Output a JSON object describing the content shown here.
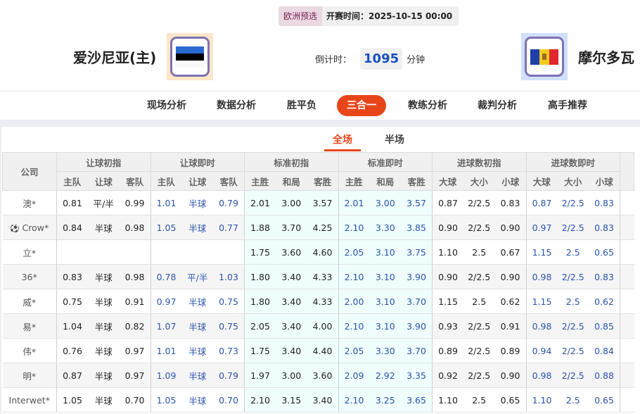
{
  "header": {
    "league": "欧洲预选",
    "kickoff": "开赛时间：2025-10-15 00:00",
    "home_team": "爱沙尼亚(主)",
    "away_team": "摩尔多瓦",
    "countdown_label": "倒计时：",
    "countdown_value": "1095",
    "countdown_unit": "分钟"
  },
  "nav": {
    "items": [
      "现场分析",
      "数据分析",
      "胜平负",
      "三合一",
      "教练分析",
      "裁判分析",
      "高手推荐"
    ],
    "active": "三合一"
  },
  "subtabs": {
    "full": "全场",
    "half": "半场",
    "active": "全场"
  },
  "table": {
    "company_header": "公司",
    "groups": [
      "让球初指",
      "让球即时",
      "标准初指",
      "标准即时",
      "进球数初指",
      "进球数即时"
    ],
    "subheaders": [
      [
        "主队",
        "让球",
        "客队"
      ],
      [
        "主队",
        "让球",
        "客队"
      ],
      [
        "主胜",
        "和局",
        "客胜"
      ],
      [
        "主胜",
        "和局",
        "客胜"
      ],
      [
        "大球",
        "大小",
        "小球"
      ],
      [
        "大球",
        "大小",
        "小球"
      ]
    ],
    "rows": [
      {
        "company": "澳*",
        "values": [
          "0.81",
          "平/半",
          "0.99",
          "1.01",
          "半球",
          "0.79",
          "2.01",
          "3.00",
          "3.57",
          "2.01",
          "3.00",
          "3.57",
          "0.87",
          "2/2.5",
          "0.83",
          "0.87",
          "2/2.5",
          "0.83"
        ]
      },
      {
        "company": "Crow*",
        "icon": "soccer-ball-icon",
        "values": [
          "0.84",
          "半球",
          "0.98",
          "1.05",
          "半球",
          "0.77",
          "1.88",
          "3.70",
          "4.25",
          "2.10",
          "3.30",
          "3.85",
          "0.90",
          "2/2.5",
          "0.90",
          "0.97",
          "2/2.5",
          "0.83"
        ]
      },
      {
        "company": "立*",
        "values": [
          "",
          "",
          "",
          "",
          "",
          "",
          "1.75",
          "3.60",
          "4.60",
          "2.05",
          "3.10",
          "3.75",
          "1.10",
          "2.5",
          "0.67",
          "1.15",
          "2.5",
          "0.65"
        ]
      },
      {
        "company": "36*",
        "values": [
          "0.83",
          "半球",
          "0.98",
          "0.78",
          "平/半",
          "1.03",
          "1.80",
          "3.40",
          "4.33",
          "2.10",
          "3.10",
          "3.90",
          "0.90",
          "2/2.5",
          "0.90",
          "0.98",
          "2/2.5",
          "0.83"
        ]
      },
      {
        "company": "威*",
        "values": [
          "0.75",
          "半球",
          "0.91",
          "0.97",
          "半球",
          "0.75",
          "1.80",
          "3.40",
          "4.33",
          "2.00",
          "3.10",
          "3.70",
          "1.15",
          "2.5",
          "0.62",
          "1.15",
          "2.5",
          "0.62"
        ]
      },
      {
        "company": "易*",
        "values": [
          "1.04",
          "半球",
          "0.82",
          "1.07",
          "半球",
          "0.75",
          "2.05",
          "3.40",
          "4.00",
          "2.10",
          "3.10",
          "3.90",
          "0.93",
          "2/2.5",
          "0.91",
          "0.98",
          "2/2.5",
          "0.85"
        ]
      },
      {
        "company": "伟*",
        "values": [
          "0.76",
          "半球",
          "0.97",
          "1.01",
          "半球",
          "0.73",
          "1.75",
          "3.40",
          "4.40",
          "2.05",
          "3.30",
          "3.70",
          "0.89",
          "2/2.5",
          "0.89",
          "0.94",
          "2/2.5",
          "0.84"
        ]
      },
      {
        "company": "明*",
        "values": [
          "0.87",
          "半球",
          "0.97",
          "1.09",
          "半球",
          "0.79",
          "1.97",
          "3.00",
          "3.60",
          "2.09",
          "2.92",
          "3.35",
          "0.92",
          "2/2.5",
          "0.90",
          "0.98",
          "2/2.5",
          "0.88"
        ]
      },
      {
        "company": "Interwet*",
        "values": [
          "1.05",
          "半球",
          "0.70",
          "1.05",
          "半球",
          "0.70",
          "2.10",
          "3.15",
          "3.40",
          "2.10",
          "3.25",
          "3.65",
          "1.10",
          "2.5",
          "0.65",
          "1.10",
          "2.5",
          "0.65"
        ]
      }
    ]
  },
  "colors": {
    "accent": "#e8461a",
    "live_odds": "#2a55b0",
    "standard_bg": "#effdfd"
  }
}
